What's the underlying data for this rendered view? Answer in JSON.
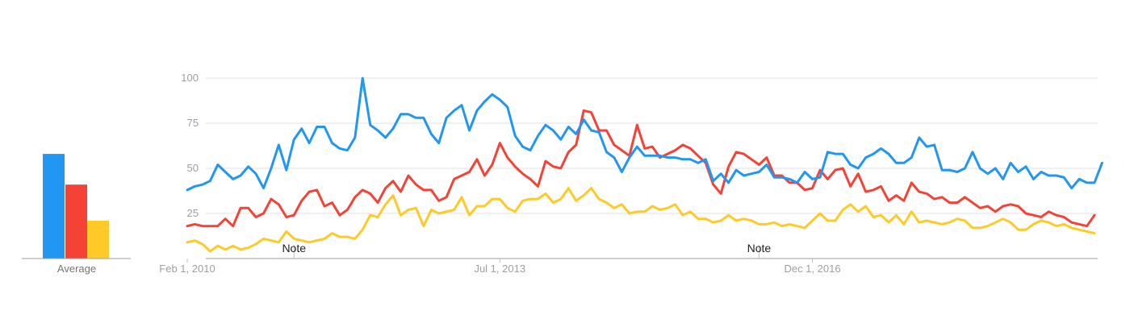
{
  "chart_data": {
    "type": "line",
    "average_label": "Average",
    "averages": [
      {
        "color": "#2196f3",
        "value": 58
      },
      {
        "color": "#f44336",
        "value": 41
      },
      {
        "color": "#ffca28",
        "value": 21
      }
    ],
    "ylim": [
      0,
      100
    ],
    "yticks": [
      "25",
      "50",
      "75",
      "100"
    ],
    "xlim": [
      0,
      119
    ],
    "xticks": [
      {
        "label": "Feb 1, 2010",
        "x": 0
      },
      {
        "label": "Jul 1, 2013",
        "x": 41
      },
      {
        "label": "Dec 1, 2016",
        "x": 82
      }
    ],
    "notes": [
      {
        "label": "Note",
        "x": 14
      },
      {
        "label": "Note",
        "x": 75
      }
    ],
    "grid": true,
    "series": [
      {
        "color": "#2196f3",
        "values": [
          38,
          40,
          41,
          43,
          52,
          48,
          44,
          46,
          51,
          47,
          39,
          50,
          63,
          49,
          66,
          72,
          64,
          73,
          73,
          64,
          61,
          60,
          67,
          100,
          74,
          71,
          67,
          72,
          80,
          80,
          78,
          78,
          69,
          64,
          78,
          82,
          85,
          71,
          82,
          87,
          91,
          88,
          84,
          68,
          62,
          60,
          68,
          74,
          71,
          66,
          73,
          69,
          77,
          71,
          70,
          59,
          56,
          48,
          56,
          62,
          57,
          57,
          57,
          56,
          56,
          55,
          55,
          53,
          55,
          43,
          47,
          42,
          49,
          46,
          47,
          48,
          52,
          45,
          45,
          44,
          42,
          48,
          44,
          45,
          59,
          58,
          58,
          52,
          50,
          56,
          58,
          61,
          58,
          53,
          53,
          56,
          67,
          62,
          63,
          49,
          49,
          48,
          50,
          59,
          50,
          47,
          50,
          44,
          53,
          48,
          51,
          44,
          48,
          46,
          46,
          45,
          39,
          44,
          42,
          42,
          53
        ]
      },
      {
        "color": "#f44336",
        "values": [
          18,
          19,
          18,
          18,
          18,
          22,
          18,
          28,
          28,
          23,
          25,
          33,
          30,
          23,
          24,
          32,
          37,
          38,
          29,
          31,
          24,
          27,
          34,
          38,
          36,
          31,
          39,
          43,
          37,
          46,
          41,
          38,
          38,
          32,
          34,
          44,
          46,
          48,
          55,
          46,
          52,
          64,
          56,
          51,
          47,
          44,
          40,
          54,
          51,
          50,
          59,
          63,
          82,
          81,
          71,
          71,
          63,
          60,
          57,
          74,
          61,
          62,
          56,
          58,
          60,
          63,
          61,
          57,
          53,
          41,
          36,
          51,
          59,
          58,
          55,
          52,
          56,
          46,
          46,
          42,
          42,
          38,
          39,
          49,
          44,
          49,
          50,
          40,
          47,
          37,
          38,
          40,
          32,
          35,
          32,
          42,
          37,
          36,
          33,
          34,
          31,
          31,
          34,
          31,
          28,
          29,
          26,
          29,
          30,
          29,
          25,
          24,
          23,
          26,
          24,
          23,
          20,
          19,
          18,
          24
        ]
      },
      {
        "color": "#ffca28",
        "values": [
          9,
          10,
          8,
          4,
          7,
          5,
          7,
          5,
          6,
          8,
          11,
          10,
          9,
          15,
          11,
          10,
          9,
          10,
          11,
          14,
          12,
          12,
          11,
          16,
          24,
          23,
          30,
          35,
          24,
          27,
          28,
          18,
          27,
          25,
          26,
          27,
          34,
          24,
          29,
          29,
          33,
          33,
          28,
          26,
          32,
          33,
          33,
          36,
          31,
          33,
          39,
          32,
          35,
          39,
          33,
          31,
          28,
          30,
          25,
          26,
          26,
          29,
          27,
          28,
          30,
          24,
          26,
          22,
          22,
          20,
          21,
          24,
          21,
          22,
          21,
          19,
          19,
          20,
          18,
          19,
          18,
          17,
          21,
          25,
          21,
          21,
          27,
          30,
          26,
          29,
          23,
          24,
          20,
          24,
          19,
          26,
          20,
          21,
          20,
          19,
          20,
          22,
          21,
          17,
          17,
          18,
          20,
          22,
          20,
          16,
          16,
          19,
          21,
          20,
          18,
          19,
          17,
          16,
          15,
          14
        ]
      }
    ]
  }
}
